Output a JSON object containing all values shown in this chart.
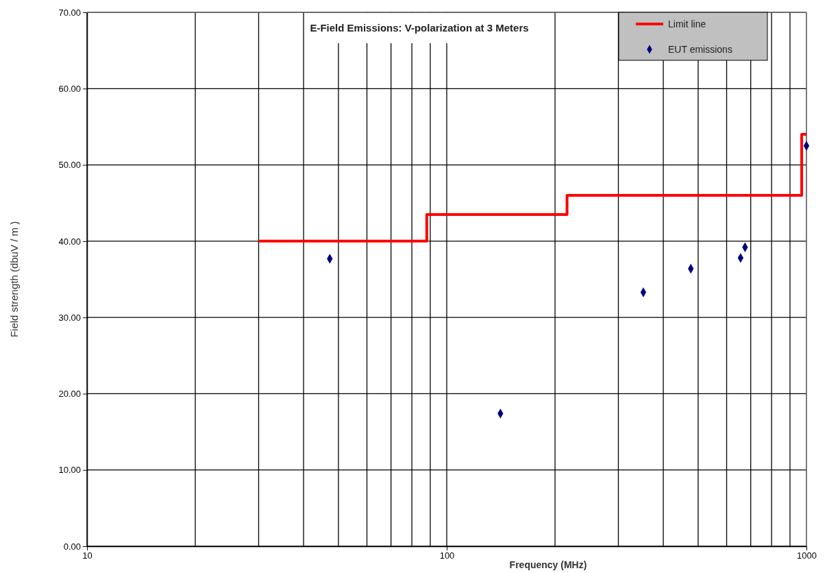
{
  "chart_data": {
    "type": "scatter",
    "title": "E-Field Emissions: V-polarization at 3 Meters",
    "xlabel": "Frequency (MHz)",
    "ylabel": "Field strength (dbuV / m )",
    "log": "x",
    "grid": true,
    "legend": "top right",
    "xlim": [
      10,
      1000
    ],
    "ylim": [
      0,
      70
    ],
    "xticks": [
      10,
      {
        "value": 20,
        "label": null
      },
      {
        "value": 30,
        "label": null
      },
      {
        "value": 40,
        "label": null
      },
      {
        "value": 50,
        "label": null
      },
      {
        "value": 60,
        "label": null
      },
      {
        "value": 70,
        "label": null
      },
      {
        "value": 80,
        "label": null
      },
      {
        "value": 90,
        "label": null
      },
      100,
      {
        "value": 200,
        "label": null
      },
      {
        "value": 300,
        "label": null
      },
      {
        "value": 400,
        "label": null
      },
      {
        "value": 500,
        "label": null
      },
      {
        "value": 600,
        "label": null
      },
      {
        "value": 700,
        "label": null
      },
      {
        "value": 800,
        "label": null
      },
      {
        "value": 900,
        "label": null
      },
      1000
    ],
    "yticks": [
      {
        "value": 0,
        "label": "0.00"
      },
      {
        "value": 10,
        "label": "10.00"
      },
      {
        "value": 20,
        "label": "20.00"
      },
      {
        "value": 30,
        "label": "30.00"
      },
      {
        "value": 40,
        "label": "40.00"
      },
      {
        "value": 50,
        "label": "50.00"
      },
      {
        "value": 60,
        "label": "60.00"
      },
      {
        "value": 70,
        "label": "70.00"
      }
    ],
    "series": [
      {
        "name": "Limit line",
        "type": "step",
        "color": "#ff0000",
        "x": [
          30,
          88,
          216,
          970,
          1000
        ],
        "values": [
          40,
          43.5,
          46,
          54,
          54
        ]
      },
      {
        "name": "EUT emissions",
        "marker": "diamond",
        "color": "#00007f",
        "x": [
          47.3,
          141,
          352,
          477,
          656,
          675,
          1000
        ],
        "values": [
          37.7,
          17.4,
          33.3,
          36.4,
          37.8,
          39.2,
          52.5
        ]
      }
    ]
  }
}
